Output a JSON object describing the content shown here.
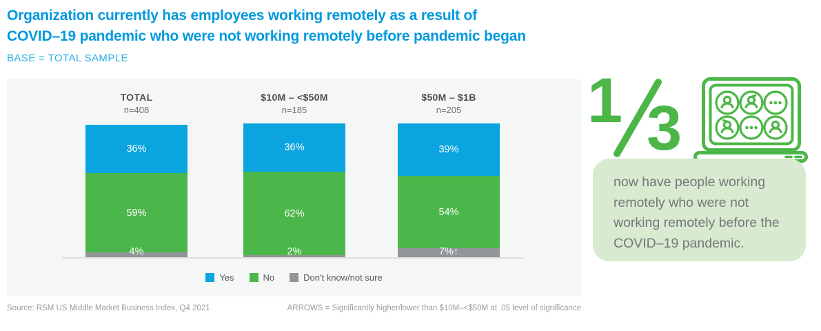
{
  "header": {
    "title_line1": "Organization currently has employees working remotely as a result of",
    "title_line2": "COVID–19 pandemic who were not working remotely before pandemic began",
    "subtitle": "BASE = TOTAL SAMPLE"
  },
  "chart_data": {
    "type": "bar",
    "stacked": true,
    "orientation": "vertical",
    "unit": "percent",
    "categories": [
      "TOTAL",
      "$10M – <$50M",
      "$50M – $1B"
    ],
    "sample_sizes": [
      "n=408",
      "n=185",
      "n=205"
    ],
    "series": [
      {
        "name": "Yes",
        "color": "#0AA4DF",
        "values": [
          36,
          36,
          39
        ],
        "labels": [
          "36%",
          "36%",
          "39%"
        ]
      },
      {
        "name": "No",
        "color": "#4BB649",
        "values": [
          59,
          62,
          54
        ],
        "labels": [
          "59%",
          "62%",
          "54%"
        ]
      },
      {
        "name": "Don't know/not sure",
        "color": "#939598",
        "values": [
          4,
          2,
          7
        ],
        "labels": [
          "4%",
          "2%",
          "7%↑"
        ]
      }
    ],
    "ylim": [
      0,
      100
    ],
    "gridlines": false,
    "legend_position": "bottom"
  },
  "callout": {
    "fraction_numerator": "1",
    "fraction_denominator": "3",
    "text": "now have people working remotely who were not working remotely before the COVID–19 pandemic."
  },
  "footer": {
    "source": "Source: RSM US Middle Market Business Index, Q4 2021",
    "note": "ARROWS = Significantly higher/lower than $10M–<$50M at .05 level of significance"
  },
  "colors": {
    "title_blue": "#0099DC",
    "subtitle_blue": "#29B2E4",
    "panel_bg": "#F5F7F6",
    "callout_green": "#4CB748",
    "callout_box_bg": "#D8EACF",
    "callout_text_gray": "#77787B",
    "footer_gray": "#9B9B9D"
  }
}
